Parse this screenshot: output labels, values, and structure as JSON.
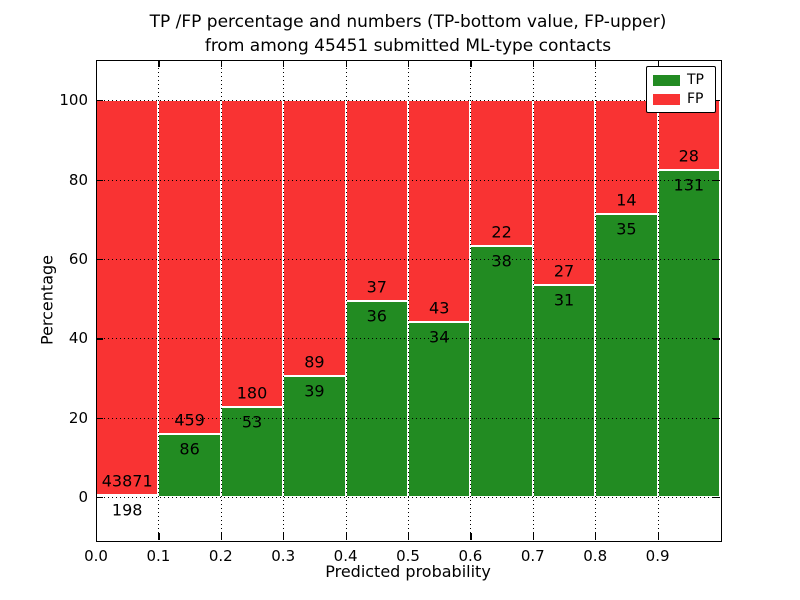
{
  "title": {
    "line1": "TP /FP percentage and numbers (TP-bottom value, FP-upper)",
    "line2": "from among 45451 submitted ML-type contacts"
  },
  "chart_data": {
    "type": "bar",
    "stacked": true,
    "normalized": "each bin scaled to 100%",
    "total_contacts": 45451,
    "bin_edges": [
      0.0,
      0.1,
      0.2,
      0.3,
      0.4,
      0.5,
      0.6,
      0.7,
      0.8,
      0.9,
      1.0
    ],
    "series": [
      {
        "name": "TP",
        "color": "#228b22",
        "counts": [
          198,
          86,
          53,
          39,
          36,
          34,
          38,
          31,
          35,
          131
        ]
      },
      {
        "name": "FP",
        "color": "#f93333",
        "counts": [
          43871,
          459,
          180,
          89,
          37,
          43,
          22,
          27,
          14,
          28
        ]
      }
    ],
    "tp_percent_of_bin": [
      0.45,
      15.78,
      22.75,
      30.47,
      49.32,
      44.16,
      63.33,
      53.45,
      71.43,
      82.39
    ],
    "xlabel": "Predicted probability",
    "ylabel": "Percentage",
    "xtick_labels": [
      "0.0",
      "0.1",
      "0.2",
      "0.3",
      "0.4",
      "0.5",
      "0.6",
      "0.7",
      "0.8",
      "0.9"
    ],
    "ytick_values": [
      0,
      20,
      40,
      60,
      80,
      100
    ],
    "xlim": [
      0.0,
      1.0
    ],
    "ylim": [
      -10.8,
      110.1
    ],
    "grid": "dotted black, horizontal at yticks and vertical at xticks",
    "legend": {
      "position": "upper right",
      "entries": [
        {
          "label": "TP",
          "color": "#228b22"
        },
        {
          "label": "FP",
          "color": "#f93333"
        }
      ]
    },
    "label_note": "TP count printed below segment boundary, FP count above"
  }
}
